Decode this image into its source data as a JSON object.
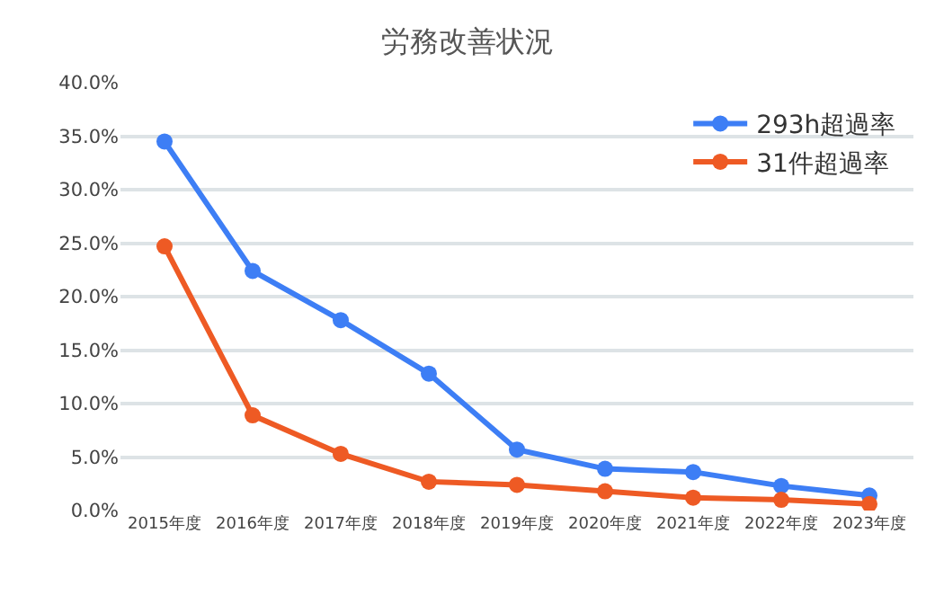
{
  "chart_data": {
    "type": "line",
    "title": "労務改善状況",
    "categories": [
      "2015年度",
      "2016年度",
      "2017年度",
      "2018年度",
      "2019年度",
      "2020年度",
      "2021年度",
      "2022年度",
      "2023年度"
    ],
    "series": [
      {
        "name": "293h超過率",
        "color": "#3d7ef5",
        "values": [
          34.5,
          22.4,
          17.8,
          12.8,
          5.7,
          3.9,
          3.6,
          2.3,
          1.4
        ]
      },
      {
        "name": "31件超過率",
        "color": "#ee5a24",
        "values": [
          24.7,
          8.9,
          5.3,
          2.7,
          2.4,
          1.8,
          1.2,
          1.0,
          0.6
        ]
      }
    ],
    "ylim": [
      0,
      40
    ],
    "yticks": [
      {
        "value": 0,
        "label": "0.0%"
      },
      {
        "value": 5,
        "label": "5.0%"
      },
      {
        "value": 10,
        "label": "10.0%"
      },
      {
        "value": 15,
        "label": "15.0%"
      },
      {
        "value": 20,
        "label": "20.0%"
      },
      {
        "value": 25,
        "label": "25.0%"
      },
      {
        "value": 30,
        "label": "30.0%"
      },
      {
        "value": 35,
        "label": "35.0%"
      },
      {
        "value": 40,
        "label": "40.0%"
      }
    ],
    "grid": "y",
    "legend": "top right",
    "marker": "circle",
    "line_style": "solid"
  }
}
